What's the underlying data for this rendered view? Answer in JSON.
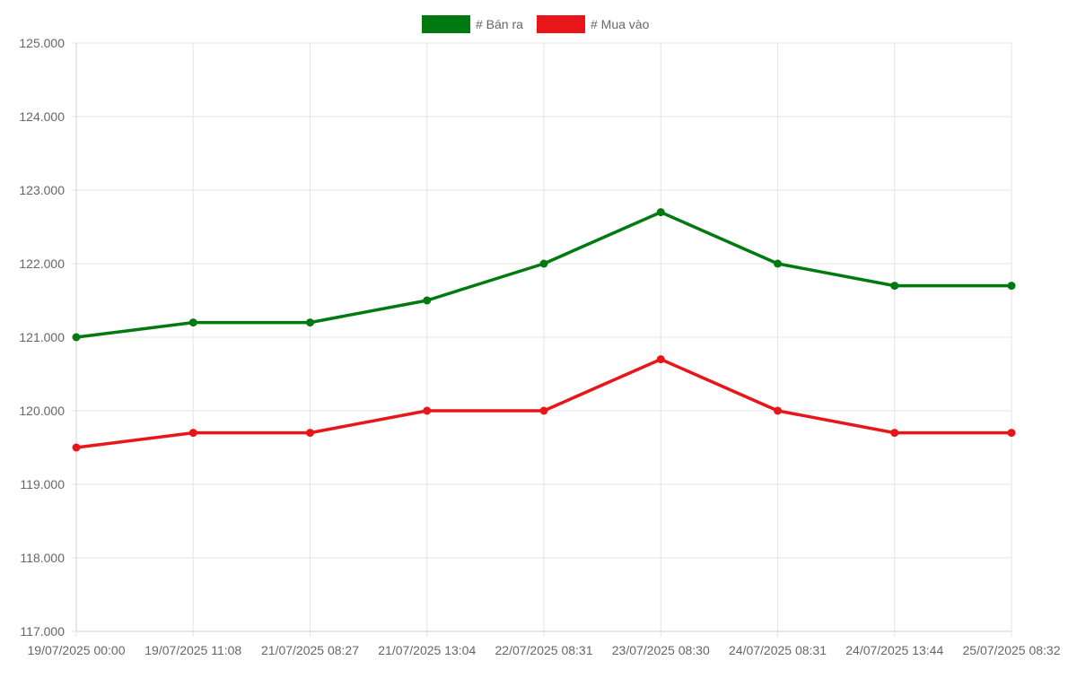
{
  "chart_data": {
    "type": "line",
    "categories": [
      "19/07/2025 00:00",
      "19/07/2025 11:08",
      "21/07/2025 08:27",
      "21/07/2025 13:04",
      "22/07/2025 08:31",
      "23/07/2025 08:30",
      "24/07/2025 08:31",
      "24/07/2025 13:44",
      "25/07/2025 08:32"
    ],
    "series": [
      {
        "name": "# Bán ra",
        "color": "#007a10",
        "values": [
          121000,
          121200,
          121200,
          121500,
          122000,
          122700,
          122000,
          121700,
          121700
        ]
      },
      {
        "name": "# Mua vào",
        "color": "#e8161a",
        "values": [
          119500,
          119700,
          119700,
          120000,
          120000,
          120700,
          120000,
          119700,
          119700
        ]
      }
    ],
    "ylim": [
      117000,
      125000
    ],
    "yticks": [
      "125.000",
      "124.000",
      "123.000",
      "122.000",
      "121.000",
      "120.000",
      "119.000",
      "118.000",
      "117.000"
    ],
    "ytick_values": [
      125000,
      124000,
      123000,
      122000,
      121000,
      120000,
      119000,
      118000,
      117000
    ],
    "grid": true,
    "legend_position": "top-center"
  }
}
